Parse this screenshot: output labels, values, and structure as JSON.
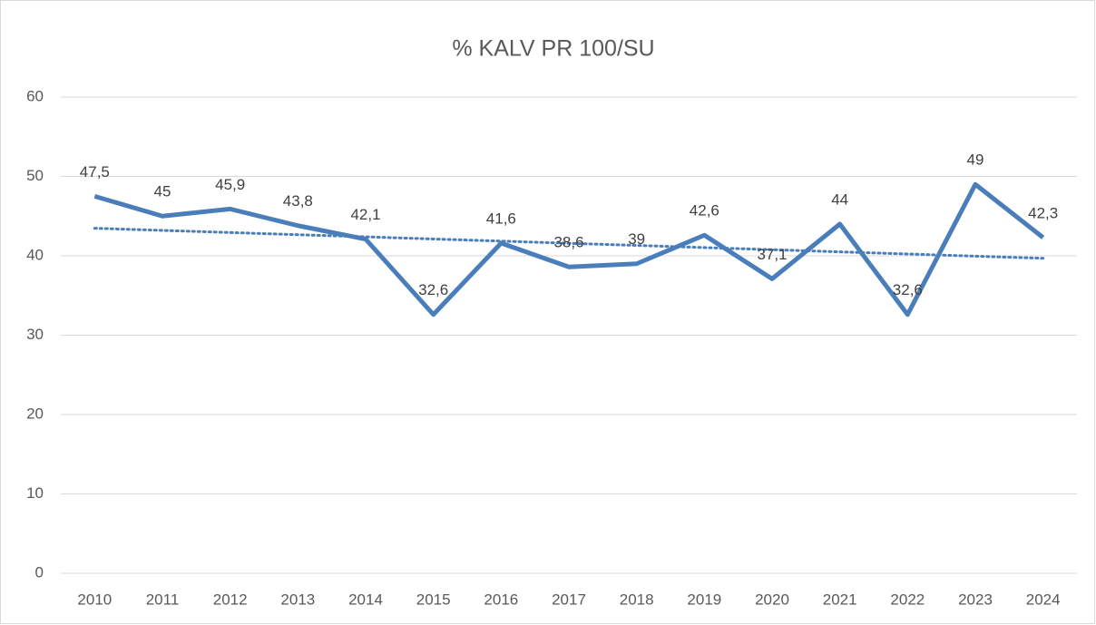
{
  "chart_data": {
    "type": "line",
    "title": "% KALV PR 100/SU",
    "categories": [
      "2010",
      "2011",
      "2012",
      "2013",
      "2014",
      "2015",
      "2016",
      "2017",
      "2018",
      "2019",
      "2020",
      "2021",
      "2022",
      "2023",
      "2024"
    ],
    "series": [
      {
        "color": "#4a7ebb",
        "values": [
          47.5,
          45,
          45.9,
          43.8,
          42.1,
          32.6,
          41.6,
          38.6,
          39,
          42.6,
          37.1,
          44,
          32.6,
          49,
          42.3
        ],
        "value_labels": [
          "47,5",
          "45",
          "45,9",
          "43,8",
          "42,1",
          "32,6",
          "41,6",
          "38,6",
          "39",
          "42,6",
          "37,1",
          "44",
          "32,6",
          "49",
          "42,3"
        ]
      }
    ],
    "trendline": "linear",
    "ylim": [
      0,
      60
    ],
    "yticks": [
      0,
      10,
      20,
      30,
      40,
      50,
      60
    ],
    "grid": true
  }
}
